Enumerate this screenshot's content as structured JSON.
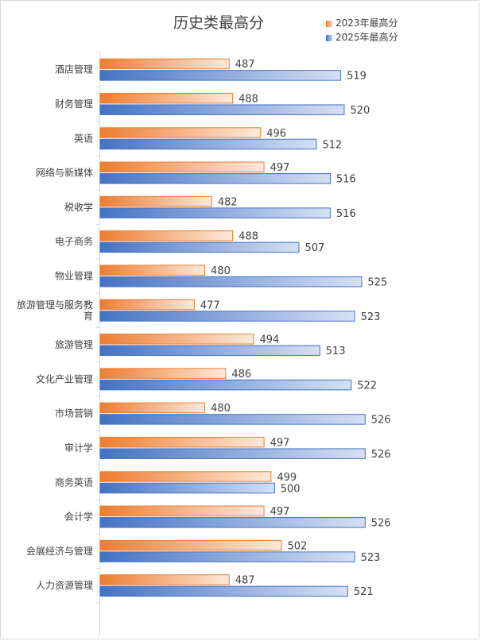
{
  "chart_data": {
    "type": "bar",
    "orientation": "horizontal",
    "title": "历史类最高分",
    "categories": [
      "酒店管理",
      "财务管理",
      "英语",
      "网络与新媒体",
      "税收学",
      "电子商务",
      "物业管理",
      "旅游管理与服务教育",
      "旅游管理",
      "文化产业管理",
      "市场营销",
      "审计学",
      "商务英语",
      "会计学",
      "会展经济与管理",
      "人力资源管理"
    ],
    "series": [
      {
        "name": "2023年最高分",
        "color": "#ed7d31",
        "values": [
          487,
          488,
          496,
          497,
          482,
          488,
          480,
          477,
          494,
          486,
          480,
          497,
          499,
          497,
          502,
          487
        ]
      },
      {
        "name": "2025年最高分",
        "color": "#4472c4",
        "values": [
          519,
          520,
          512,
          516,
          516,
          507,
          525,
          523,
          513,
          522,
          526,
          526,
          500,
          526,
          523,
          521
        ]
      }
    ],
    "axis_min": 450,
    "legend_position": "top-right",
    "xlabel": "",
    "ylabel": ""
  }
}
